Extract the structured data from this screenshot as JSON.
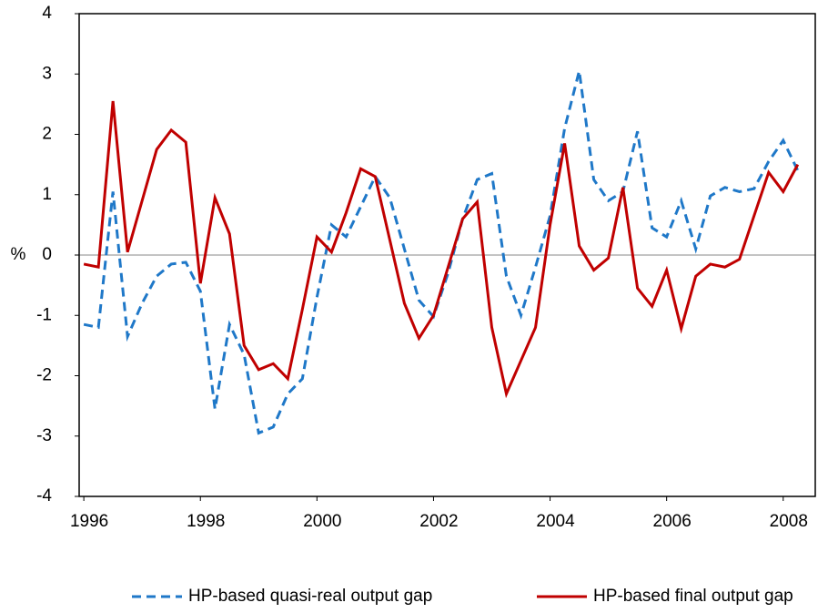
{
  "chart_data": {
    "type": "line",
    "y_label": "%",
    "x": [
      1996,
      1996.25,
      1996.5,
      1996.75,
      1997,
      1997.25,
      1997.5,
      1997.75,
      1998,
      1998.25,
      1998.5,
      1998.75,
      1999,
      1999.25,
      1999.5,
      1999.75,
      2000,
      2000.25,
      2000.5,
      2000.75,
      2001,
      2001.25,
      2001.5,
      2001.75,
      2002,
      2002.25,
      2002.5,
      2002.75,
      2003,
      2003.25,
      2003.5,
      2003.75,
      2004,
      2004.25,
      2004.5,
      2004.75,
      2005,
      2005.25,
      2005.5,
      2005.75,
      2006,
      2006.25,
      2006.5,
      2006.75,
      2007,
      2007.25,
      2007.5,
      2007.75,
      2008,
      2008.25
    ],
    "series": [
      {
        "name": "HP-based quasi-real output gap",
        "color": "#1f78c8",
        "dash": true,
        "values": [
          -1.15,
          -1.2,
          1.05,
          -1.35,
          -0.8,
          -0.35,
          -0.15,
          -0.12,
          -0.6,
          -2.55,
          -1.15,
          -1.65,
          -2.95,
          -2.85,
          -2.3,
          -2.05,
          -0.7,
          0.5,
          0.3,
          0.8,
          1.3,
          0.95,
          0.1,
          -0.75,
          -1.02,
          -0.3,
          0.6,
          1.25,
          1.35,
          -0.35,
          -1.0,
          -0.2,
          0.65,
          2.1,
          3.05,
          1.25,
          0.9,
          1.05,
          2.05,
          0.45,
          0.3,
          0.9,
          0.1,
          0.98,
          1.12,
          1.05,
          1.1,
          1.55,
          1.9,
          1.4
        ]
      },
      {
        "name": "HP-based final output gap",
        "color": "#c00000",
        "dash": false,
        "values": [
          -0.15,
          -0.2,
          2.55,
          0.05,
          0.9,
          1.75,
          2.07,
          1.87,
          -0.47,
          0.95,
          0.35,
          -1.5,
          -1.9,
          -1.8,
          -2.05,
          -0.9,
          0.3,
          0.05,
          0.7,
          1.43,
          1.3,
          0.25,
          -0.8,
          -1.38,
          -1.0,
          -0.2,
          0.6,
          0.88,
          -1.2,
          -2.3,
          -1.75,
          -1.2,
          0.5,
          1.85,
          0.15,
          -0.25,
          -0.05,
          1.12,
          -0.55,
          -0.85,
          -0.25,
          -1.22,
          -0.35,
          -0.15,
          -0.2,
          -0.07,
          0.65,
          1.37,
          1.05,
          1.5
        ]
      }
    ],
    "xlim": [
      1995.92,
      2008.55
    ],
    "xticks": [
      1996,
      1998,
      2000,
      2002,
      2004,
      2006,
      2008
    ],
    "ylim": [
      -4,
      4
    ],
    "yticks": [
      -4,
      -3,
      -2,
      -1,
      0,
      1,
      2,
      3,
      4
    ],
    "zero_line": true,
    "legend": "bottom"
  }
}
